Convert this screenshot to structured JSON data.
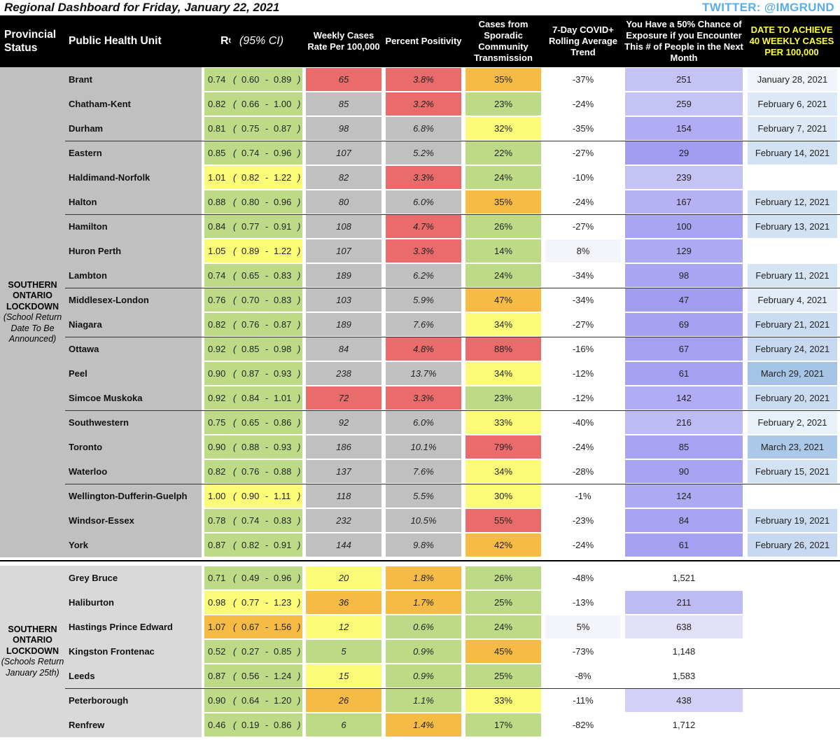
{
  "title": "Regional Dashboard for Friday, January 22, 2021",
  "twitter": "TWITTER: @IMGRUND",
  "headers": {
    "status": "Provincial Status",
    "phu": "Public Health Unit",
    "rt": "R",
    "rt_sub": "t",
    "rt_ci": "(95% CI)",
    "weekly": "Weekly Cases Rate Per 100,000",
    "positivity": "Percent Positivity",
    "sporadic": "Cases from Sporadic Community Transmission",
    "trend": "7-Day COVID+ Rolling Average Trend",
    "exposure": "You Have a 50% Chance of Exposure if you Encounter This # of People in the Next Month",
    "target": "DATE TO ACHIEVE 40 WEEKLY CASES PER 100,000"
  },
  "sections": [
    {
      "status_bold": "SOUTHERN ONTARIO LOCKDOWN",
      "status_italic": "(School Return Date To Be Announced)",
      "bg": "#c0c0c0",
      "rows": [
        {
          "name": "Brant",
          "rt": "0.74",
          "lo": "0.60",
          "hi": "0.89",
          "rt_color": "#bddb87",
          "weekly": "65",
          "weekly_color": "#e96b6b",
          "pos": "3.8%",
          "pos_color": "#e96b6b",
          "spor": "35%",
          "spor_color": "#f5bb45",
          "trend": "-37%",
          "trend_color": "#ffffff",
          "exp": "251",
          "exp_color": "#c5c2f5",
          "date": "January 28, 2021",
          "date_color": "#f1f5fb"
        },
        {
          "name": "Chatham-Kent",
          "rt": "0.82",
          "lo": "0.66",
          "hi": "1.00",
          "rt_color": "#bddb87",
          "weekly": "85",
          "weekly_color": "#c0c0c0",
          "pos": "3.2%",
          "pos_color": "#e96b6b",
          "spor": "23%",
          "spor_color": "#bddb87",
          "trend": "-24%",
          "trend_color": "#ffffff",
          "exp": "259",
          "exp_color": "#c5c2f5",
          "date": "February 6, 2021",
          "date_color": "#dce8f5"
        },
        {
          "name": "Durham",
          "rt": "0.81",
          "lo": "0.75",
          "hi": "0.87",
          "rt_color": "#bddb87",
          "weekly": "98",
          "weekly_color": "#c0c0c0",
          "pos": "6.8%",
          "pos_color": "#c0c0c0",
          "spor": "32%",
          "spor_color": "#fbfb77",
          "trend": "-35%",
          "trend_color": "#ffffff",
          "exp": "154",
          "exp_color": "#b1acf3",
          "date": "February 7, 2021",
          "date_color": "#dce8f5"
        },
        {
          "name": "Eastern",
          "rt": "0.85",
          "lo": "0.74",
          "hi": "0.96",
          "rt_color": "#bddb87",
          "weekly": "107",
          "weekly_color": "#c0c0c0",
          "pos": "5.2%",
          "pos_color": "#c0c0c0",
          "spor": "22%",
          "spor_color": "#bddb87",
          "trend": "-27%",
          "trend_color": "#ffffff",
          "exp": "29",
          "exp_color": "#a39df2",
          "date": "February 14, 2021",
          "date_color": "#d2e2f3"
        },
        {
          "name": "Haldimand-Norfolk",
          "rt": "1.01",
          "lo": "0.82",
          "hi": "1.22",
          "rt_color": "#fbfb77",
          "weekly": "82",
          "weekly_color": "#c0c0c0",
          "pos": "3.3%",
          "pos_color": "#e96b6b",
          "spor": "24%",
          "spor_color": "#bddb87",
          "trend": "-10%",
          "trend_color": "#ffffff",
          "exp": "239",
          "exp_color": "#c5c2f5",
          "date": "",
          "date_color": "#ffffff"
        },
        {
          "name": "Halton",
          "rt": "0.88",
          "lo": "0.80",
          "hi": "0.96",
          "rt_color": "#bddb87",
          "weekly": "80",
          "weekly_color": "#c0c0c0",
          "pos": "6.0%",
          "pos_color": "#c0c0c0",
          "spor": "35%",
          "spor_color": "#f5bb45",
          "trend": "-24%",
          "trend_color": "#ffffff",
          "exp": "167",
          "exp_color": "#b6b1f3",
          "date": "February 12, 2021",
          "date_color": "#d2e2f3"
        },
        {
          "name": "Hamilton",
          "rt": "0.84",
          "lo": "0.77",
          "hi": "0.91",
          "rt_color": "#bddb87",
          "weekly": "108",
          "weekly_color": "#c0c0c0",
          "pos": "4.7%",
          "pos_color": "#e96b6b",
          "spor": "26%",
          "spor_color": "#bddb87",
          "trend": "-27%",
          "trend_color": "#ffffff",
          "exp": "100",
          "exp_color": "#aaa5f2",
          "date": "February 13, 2021",
          "date_color": "#d2e2f3"
        },
        {
          "name": "Huron Perth",
          "rt": "1.05",
          "lo": "0.89",
          "hi": "1.22",
          "rt_color": "#fbfb77",
          "weekly": "107",
          "weekly_color": "#c0c0c0",
          "pos": "3.3%",
          "pos_color": "#e96b6b",
          "spor": "14%",
          "spor_color": "#bddb87",
          "trend": "8%",
          "trend_color": "#f4f4fb",
          "exp": "129",
          "exp_color": "#aea9f3",
          "date": "",
          "date_color": "#ffffff"
        },
        {
          "name": "Lambton",
          "rt": "0.74",
          "lo": "0.65",
          "hi": "0.83",
          "rt_color": "#bddb87",
          "weekly": "189",
          "weekly_color": "#c0c0c0",
          "pos": "6.2%",
          "pos_color": "#c0c0c0",
          "spor": "24%",
          "spor_color": "#bddb87",
          "trend": "-34%",
          "trend_color": "#ffffff",
          "exp": "98",
          "exp_color": "#aaa5f2",
          "date": "February 11, 2021",
          "date_color": "#d6e5f4"
        },
        {
          "name": "Middlesex-London",
          "rt": "0.76",
          "lo": "0.70",
          "hi": "0.83",
          "rt_color": "#bddb87",
          "weekly": "103",
          "weekly_color": "#c0c0c0",
          "pos": "5.9%",
          "pos_color": "#c0c0c0",
          "spor": "47%",
          "spor_color": "#f5bb45",
          "trend": "-34%",
          "trend_color": "#ffffff",
          "exp": "47",
          "exp_color": "#a39df2",
          "date": "February 4, 2021",
          "date_color": "#e4edf7"
        },
        {
          "name": "Niagara",
          "rt": "0.82",
          "lo": "0.76",
          "hi": "0.87",
          "rt_color": "#bddb87",
          "weekly": "189",
          "weekly_color": "#c0c0c0",
          "pos": "7.6%",
          "pos_color": "#c0c0c0",
          "spor": "34%",
          "spor_color": "#fbfb77",
          "trend": "-27%",
          "trend_color": "#ffffff",
          "exp": "69",
          "exp_color": "#a6a0f2",
          "date": "February 21, 2021",
          "date_color": "#cadcf1"
        },
        {
          "name": "Ottawa",
          "rt": "0.92",
          "lo": "0.85",
          "hi": "0.98",
          "rt_color": "#bddb87",
          "weekly": "84",
          "weekly_color": "#c0c0c0",
          "pos": "4.8%",
          "pos_color": "#e96b6b",
          "spor": "88%",
          "spor_color": "#e96b6b",
          "trend": "-16%",
          "trend_color": "#ffffff",
          "exp": "67",
          "exp_color": "#a6a0f2",
          "date": "February 24, 2021",
          "date_color": "#c6d9f0"
        },
        {
          "name": "Peel",
          "rt": "0.90",
          "lo": "0.87",
          "hi": "0.93",
          "rt_color": "#bddb87",
          "weekly": "238",
          "weekly_color": "#c0c0c0",
          "pos": "13.7%",
          "pos_color": "#c0c0c0",
          "spor": "34%",
          "spor_color": "#fbfb77",
          "trend": "-12%",
          "trend_color": "#ffffff",
          "exp": "61",
          "exp_color": "#a6a0f2",
          "date": "March 29, 2021",
          "date_color": "#a6c4e6"
        },
        {
          "name": "Simcoe Muskoka",
          "rt": "0.92",
          "lo": "0.84",
          "hi": "1.01",
          "rt_color": "#bddb87",
          "weekly": "72",
          "weekly_color": "#e96b6b",
          "pos": "3.3%",
          "pos_color": "#e96b6b",
          "spor": "23%",
          "spor_color": "#bddb87",
          "trend": "-12%",
          "trend_color": "#ffffff",
          "exp": "142",
          "exp_color": "#b1acf3",
          "date": "February 20, 2021",
          "date_color": "#cadcf1"
        },
        {
          "name": "Southwestern",
          "rt": "0.75",
          "lo": "0.65",
          "hi": "0.86",
          "rt_color": "#bddb87",
          "weekly": "92",
          "weekly_color": "#c0c0c0",
          "pos": "6.0%",
          "pos_color": "#c0c0c0",
          "spor": "33%",
          "spor_color": "#fbfb77",
          "trend": "-40%",
          "trend_color": "#ffffff",
          "exp": "216",
          "exp_color": "#bebaf4",
          "date": "February 2, 2021",
          "date_color": "#e8f0f8"
        },
        {
          "name": "Toronto",
          "rt": "0.90",
          "lo": "0.88",
          "hi": "0.93",
          "rt_color": "#bddb87",
          "weekly": "186",
          "weekly_color": "#c0c0c0",
          "pos": "10.1%",
          "pos_color": "#c0c0c0",
          "spor": "79%",
          "spor_color": "#e96b6b",
          "trend": "-24%",
          "trend_color": "#ffffff",
          "exp": "85",
          "exp_color": "#a8a3f2",
          "date": "March 23, 2021",
          "date_color": "#acc8e8"
        },
        {
          "name": "Waterloo",
          "rt": "0.82",
          "lo": "0.76",
          "hi": "0.88",
          "rt_color": "#bddb87",
          "weekly": "137",
          "weekly_color": "#c0c0c0",
          "pos": "7.6%",
          "pos_color": "#c0c0c0",
          "spor": "34%",
          "spor_color": "#fbfb77",
          "trend": "-28%",
          "trend_color": "#ffffff",
          "exp": "90",
          "exp_color": "#a8a3f2",
          "date": "February 15, 2021",
          "date_color": "#d2e2f3"
        },
        {
          "name": "Wellington-Dufferin-Guelph",
          "rt": "1.00",
          "lo": "0.90",
          "hi": "1.11",
          "rt_color": "#fbfb77",
          "weekly": "118",
          "weekly_color": "#c0c0c0",
          "pos": "5.5%",
          "pos_color": "#c0c0c0",
          "spor": "30%",
          "spor_color": "#fbfb77",
          "trend": "-1%",
          "trend_color": "#ffffff",
          "exp": "124",
          "exp_color": "#aea9f3",
          "date": "",
          "date_color": "#ffffff"
        },
        {
          "name": "Windsor-Essex",
          "rt": "0.78",
          "lo": "0.74",
          "hi": "0.83",
          "rt_color": "#bddb87",
          "weekly": "232",
          "weekly_color": "#c0c0c0",
          "pos": "10.5%",
          "pos_color": "#c0c0c0",
          "spor": "55%",
          "spor_color": "#e96b6b",
          "trend": "-23%",
          "trend_color": "#ffffff",
          "exp": "84",
          "exp_color": "#a8a3f2",
          "date": "February 19, 2021",
          "date_color": "#cadcf1"
        },
        {
          "name": "York",
          "rt": "0.87",
          "lo": "0.82",
          "hi": "0.91",
          "rt_color": "#bddb87",
          "weekly": "144",
          "weekly_color": "#c0c0c0",
          "pos": "9.8%",
          "pos_color": "#c0c0c0",
          "spor": "42%",
          "spor_color": "#f5bb45",
          "trend": "-24%",
          "trend_color": "#ffffff",
          "exp": "61",
          "exp_color": "#a6a0f2",
          "date": "February 26, 2021",
          "date_color": "#c6d9f0"
        }
      ]
    },
    {
      "status_bold": "SOUTHERN ONTARIO LOCKDOWN",
      "status_italic": "(Schools Return January 25th)",
      "bg": "#d9d9d9",
      "rows": [
        {
          "name": "Grey Bruce",
          "rt": "0.71",
          "lo": "0.49",
          "hi": "0.96",
          "rt_color": "#bddb87",
          "weekly": "20",
          "weekly_color": "#fbfb77",
          "pos": "1.8%",
          "pos_color": "#f5bb45",
          "spor": "26%",
          "spor_color": "#bddb87",
          "trend": "-48%",
          "trend_color": "#ffffff",
          "exp": "1,521",
          "exp_color": "#ffffff",
          "date": "",
          "date_color": "#ffffff"
        },
        {
          "name": "Haliburton",
          "rt": "0.98",
          "lo": "0.77",
          "hi": "1.23",
          "rt_color": "#fbfb77",
          "weekly": "36",
          "weekly_color": "#f5bb45",
          "pos": "1.7%",
          "pos_color": "#f5bb45",
          "spor": "25%",
          "spor_color": "#bddb87",
          "trend": "-13%",
          "trend_color": "#ffffff",
          "exp": "211",
          "exp_color": "#bebaf4",
          "date": "",
          "date_color": "#ffffff"
        },
        {
          "name": "Hastings Prince Edward",
          "rt": "1.07",
          "lo": "0.67",
          "hi": "1.56",
          "rt_color": "#f5bb45",
          "weekly": "12",
          "weekly_color": "#fbfb77",
          "pos": "0.6%",
          "pos_color": "#bddb87",
          "spor": "24%",
          "spor_color": "#bddb87",
          "trend": "5%",
          "trend_color": "#f4f4fb",
          "exp": "638",
          "exp_color": "#e2e0f8",
          "date": "",
          "date_color": "#ffffff"
        },
        {
          "name": "Kingston Frontenac",
          "rt": "0.52",
          "lo": "0.27",
          "hi": "0.85",
          "rt_color": "#bddb87",
          "weekly": "5",
          "weekly_color": "#bddb87",
          "pos": "0.9%",
          "pos_color": "#bddb87",
          "spor": "45%",
          "spor_color": "#f5bb45",
          "trend": "-73%",
          "trend_color": "#ffffff",
          "exp": "1,148",
          "exp_color": "#ffffff",
          "date": "",
          "date_color": "#ffffff"
        },
        {
          "name": "Leeds",
          "rt": "0.87",
          "lo": "0.56",
          "hi": "1.24",
          "rt_color": "#bddb87",
          "weekly": "15",
          "weekly_color": "#fbfb77",
          "pos": "0.9%",
          "pos_color": "#bddb87",
          "spor": "25%",
          "spor_color": "#bddb87",
          "trend": "-8%",
          "trend_color": "#ffffff",
          "exp": "1,583",
          "exp_color": "#ffffff",
          "date": "",
          "date_color": "#ffffff"
        },
        {
          "name": "Peterborough",
          "rt": "0.90",
          "lo": "0.64",
          "hi": "1.20",
          "rt_color": "#bddb87",
          "weekly": "26",
          "weekly_color": "#f5bb45",
          "pos": "1.1%",
          "pos_color": "#bddb87",
          "spor": "33%",
          "spor_color": "#fbfb77",
          "trend": "-11%",
          "trend_color": "#ffffff",
          "exp": "438",
          "exp_color": "#d3d0f6",
          "date": "",
          "date_color": "#ffffff"
        },
        {
          "name": "Renfrew",
          "rt": "0.46",
          "lo": "0.19",
          "hi": "0.86",
          "rt_color": "#bddb87",
          "weekly": "6",
          "weekly_color": "#bddb87",
          "pos": "1.4%",
          "pos_color": "#f5bb45",
          "spor": "17%",
          "spor_color": "#bddb87",
          "trend": "-82%",
          "trend_color": "#ffffff",
          "exp": "1,712",
          "exp_color": "#ffffff",
          "date": "",
          "date_color": "#ffffff"
        }
      ]
    }
  ]
}
